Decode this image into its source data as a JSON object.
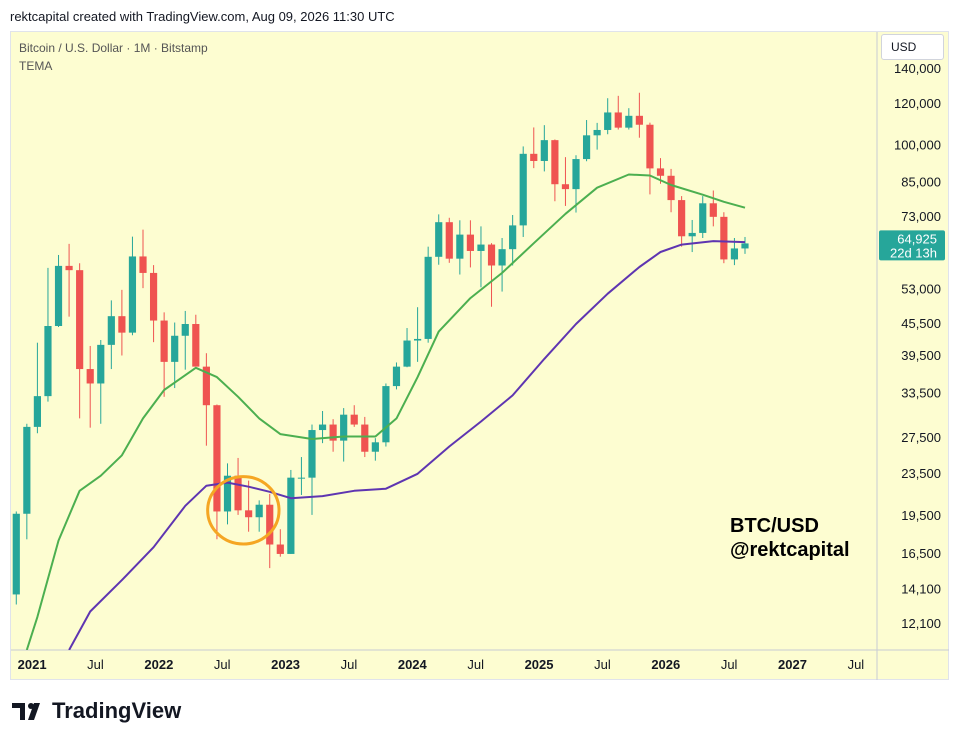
{
  "header": {
    "credit": "rektcapital created with TradingView.com, Aug 09, 2026 11:30 UTC"
  },
  "legend": {
    "symbol": "Bitcoin / U.S. Dollar · 1M · Bitstamp",
    "indicator": "TEMA"
  },
  "currency_button": "USD",
  "watermark": {
    "line1": "BTC/USD",
    "line2": "@rektcapital"
  },
  "footer": {
    "brand": "TradingView"
  },
  "colors": {
    "background": "#fdfdd1",
    "up": "#26a69a",
    "down": "#ef5350",
    "tema_fast": "#4caf50",
    "tema_slow": "#5e35b1",
    "highlight": "#f5a623"
  },
  "chart_data": {
    "type": "candlestick",
    "symbol": "Bitcoin / U.S. Dollar",
    "interval": "1M",
    "exchange": "Bitstamp",
    "y_scale": "log",
    "ylim": [
      10800,
      165000
    ],
    "xlim": [
      "2020-11-01",
      "2027-09-01"
    ],
    "y_ticks": [
      140000,
      120000,
      100000,
      85000,
      73000,
      53000,
      45500,
      39500,
      33500,
      27500,
      23500,
      19500,
      16500,
      14100,
      12100
    ],
    "x_ticks": [
      {
        "label": "2021",
        "date": "2021-01-01",
        "bold": true
      },
      {
        "label": "Jul",
        "date": "2021-07-01",
        "bold": false
      },
      {
        "label": "2022",
        "date": "2022-01-01",
        "bold": true
      },
      {
        "label": "Jul",
        "date": "2022-07-01",
        "bold": false
      },
      {
        "label": "2023",
        "date": "2023-01-01",
        "bold": true
      },
      {
        "label": "Jul",
        "date": "2023-07-01",
        "bold": false
      },
      {
        "label": "2024",
        "date": "2024-01-01",
        "bold": true
      },
      {
        "label": "Jul",
        "date": "2024-07-01",
        "bold": false
      },
      {
        "label": "2025",
        "date": "2025-01-01",
        "bold": true
      },
      {
        "label": "Jul",
        "date": "2025-07-01",
        "bold": false
      },
      {
        "label": "2026",
        "date": "2026-01-01",
        "bold": true
      },
      {
        "label": "Jul",
        "date": "2026-07-01",
        "bold": false
      },
      {
        "label": "2027",
        "date": "2027-01-01",
        "bold": true
      },
      {
        "label": "Jul",
        "date": "2027-07-01",
        "bold": false
      }
    ],
    "last_price": {
      "value": 64925,
      "label": "64,925",
      "countdown": "22d 13h"
    },
    "candles": [
      {
        "d": "2020-11",
        "o": 13800,
        "h": 19900,
        "l": 13200,
        "c": 19700
      },
      {
        "d": "2020-12",
        "o": 19700,
        "h": 29300,
        "l": 17600,
        "c": 28900
      },
      {
        "d": "2021-01",
        "o": 28900,
        "h": 41900,
        "l": 28100,
        "c": 33100
      },
      {
        "d": "2021-02",
        "o": 33100,
        "h": 58300,
        "l": 32300,
        "c": 45100
      },
      {
        "d": "2021-03",
        "o": 45100,
        "h": 61700,
        "l": 44900,
        "c": 58800
      },
      {
        "d": "2021-04",
        "o": 58800,
        "h": 64800,
        "l": 47000,
        "c": 57700
      },
      {
        "d": "2021-05",
        "o": 57700,
        "h": 59500,
        "l": 30000,
        "c": 37300
      },
      {
        "d": "2021-06",
        "o": 37300,
        "h": 41300,
        "l": 28800,
        "c": 35000
      },
      {
        "d": "2021-07",
        "o": 35000,
        "h": 42400,
        "l": 29300,
        "c": 41500
      },
      {
        "d": "2021-08",
        "o": 41500,
        "h": 50500,
        "l": 37300,
        "c": 47100
      },
      {
        "d": "2021-09",
        "o": 47100,
        "h": 52900,
        "l": 39600,
        "c": 43800
      },
      {
        "d": "2021-10",
        "o": 43800,
        "h": 66900,
        "l": 43300,
        "c": 61300
      },
      {
        "d": "2021-11",
        "o": 61300,
        "h": 69000,
        "l": 53300,
        "c": 57000
      },
      {
        "d": "2021-12",
        "o": 57000,
        "h": 59000,
        "l": 42000,
        "c": 46200
      },
      {
        "d": "2022-01",
        "o": 46200,
        "h": 47900,
        "l": 33000,
        "c": 38500
      },
      {
        "d": "2022-02",
        "o": 38500,
        "h": 45800,
        "l": 34300,
        "c": 43200
      },
      {
        "d": "2022-03",
        "o": 43200,
        "h": 48200,
        "l": 37200,
        "c": 45500
      },
      {
        "d": "2022-04",
        "o": 45500,
        "h": 47400,
        "l": 37700,
        "c": 37700
      },
      {
        "d": "2022-05",
        "o": 37700,
        "h": 40000,
        "l": 26600,
        "c": 31800
      },
      {
        "d": "2022-06",
        "o": 31800,
        "h": 31900,
        "l": 17600,
        "c": 19900
      },
      {
        "d": "2022-07",
        "o": 19900,
        "h": 24600,
        "l": 18800,
        "c": 23300
      },
      {
        "d": "2022-08",
        "o": 23300,
        "h": 25200,
        "l": 19600,
        "c": 20000
      },
      {
        "d": "2022-09",
        "o": 20000,
        "h": 22800,
        "l": 18200,
        "c": 19400
      },
      {
        "d": "2022-10",
        "o": 19400,
        "h": 20900,
        "l": 18200,
        "c": 20500
      },
      {
        "d": "2022-11",
        "o": 20500,
        "h": 21500,
        "l": 15500,
        "c": 17200
      },
      {
        "d": "2022-12",
        "o": 17200,
        "h": 18400,
        "l": 16300,
        "c": 16500
      },
      {
        "d": "2023-01",
        "o": 16500,
        "h": 23900,
        "l": 16500,
        "c": 23100
      },
      {
        "d": "2023-02",
        "o": 23100,
        "h": 25300,
        "l": 21400,
        "c": 23100
      },
      {
        "d": "2023-03",
        "o": 23100,
        "h": 29200,
        "l": 19600,
        "c": 28500
      },
      {
        "d": "2023-04",
        "o": 28500,
        "h": 31000,
        "l": 26900,
        "c": 29200
      },
      {
        "d": "2023-05",
        "o": 29200,
        "h": 29900,
        "l": 25900,
        "c": 27200
      },
      {
        "d": "2023-06",
        "o": 27200,
        "h": 31400,
        "l": 24800,
        "c": 30500
      },
      {
        "d": "2023-07",
        "o": 30500,
        "h": 31800,
        "l": 28900,
        "c": 29200
      },
      {
        "d": "2023-08",
        "o": 29200,
        "h": 30200,
        "l": 25300,
        "c": 25900
      },
      {
        "d": "2023-09",
        "o": 25900,
        "h": 27500,
        "l": 24900,
        "c": 27000
      },
      {
        "d": "2023-10",
        "o": 27000,
        "h": 35000,
        "l": 26500,
        "c": 34600
      },
      {
        "d": "2023-11",
        "o": 34600,
        "h": 38400,
        "l": 34100,
        "c": 37700
      },
      {
        "d": "2023-12",
        "o": 37700,
        "h": 44700,
        "l": 37600,
        "c": 42300
      },
      {
        "d": "2024-01",
        "o": 42300,
        "h": 49000,
        "l": 38500,
        "c": 42600
      },
      {
        "d": "2024-02",
        "o": 42600,
        "h": 64000,
        "l": 41900,
        "c": 61200
      },
      {
        "d": "2024-03",
        "o": 61200,
        "h": 73800,
        "l": 59100,
        "c": 71300
      },
      {
        "d": "2024-04",
        "o": 71300,
        "h": 72700,
        "l": 59600,
        "c": 60700
      },
      {
        "d": "2024-05",
        "o": 60700,
        "h": 71900,
        "l": 56600,
        "c": 67500
      },
      {
        "d": "2024-06",
        "o": 67500,
        "h": 71900,
        "l": 58400,
        "c": 62800
      },
      {
        "d": "2024-07",
        "o": 62800,
        "h": 70000,
        "l": 53500,
        "c": 64600
      },
      {
        "d": "2024-08",
        "o": 64600,
        "h": 65000,
        "l": 49100,
        "c": 58900
      },
      {
        "d": "2024-09",
        "o": 58900,
        "h": 66500,
        "l": 52500,
        "c": 63300
      },
      {
        "d": "2024-10",
        "o": 63300,
        "h": 73600,
        "l": 58900,
        "c": 70300
      },
      {
        "d": "2024-11",
        "o": 70300,
        "h": 99600,
        "l": 66800,
        "c": 96400
      },
      {
        "d": "2024-12",
        "o": 96400,
        "h": 108300,
        "l": 90500,
        "c": 93400
      },
      {
        "d": "2025-01",
        "o": 93400,
        "h": 109400,
        "l": 89200,
        "c": 102400
      },
      {
        "d": "2025-02",
        "o": 102400,
        "h": 102700,
        "l": 78200,
        "c": 84300
      },
      {
        "d": "2025-03",
        "o": 84300,
        "h": 95000,
        "l": 76600,
        "c": 82500
      },
      {
        "d": "2025-04",
        "o": 82500,
        "h": 95800,
        "l": 74400,
        "c": 94200
      },
      {
        "d": "2025-05",
        "o": 94200,
        "h": 111900,
        "l": 93300,
        "c": 104600
      },
      {
        "d": "2025-06",
        "o": 104600,
        "h": 110500,
        "l": 98200,
        "c": 107100
      },
      {
        "d": "2025-07",
        "o": 107100,
        "h": 123200,
        "l": 105100,
        "c": 115700
      },
      {
        "d": "2025-08",
        "o": 115700,
        "h": 124500,
        "l": 107300,
        "c": 108200
      },
      {
        "d": "2025-09",
        "o": 108200,
        "h": 117900,
        "l": 107300,
        "c": 114000
      },
      {
        "d": "2025-10",
        "o": 114000,
        "h": 126200,
        "l": 103500,
        "c": 109600
      },
      {
        "d": "2025-11",
        "o": 109600,
        "h": 110600,
        "l": 80600,
        "c": 90400
      },
      {
        "d": "2025-12",
        "o": 90400,
        "h": 94600,
        "l": 84500,
        "c": 87500
      },
      {
        "d": "2026-01",
        "o": 87500,
        "h": 90200,
        "l": 74500,
        "c": 78600
      },
      {
        "d": "2026-02",
        "o": 78600,
        "h": 80000,
        "l": 64000,
        "c": 67000
      },
      {
        "d": "2026-03",
        "o": 67000,
        "h": 72000,
        "l": 62500,
        "c": 68000
      },
      {
        "d": "2026-04",
        "o": 68000,
        "h": 80000,
        "l": 66500,
        "c": 77500
      },
      {
        "d": "2026-05",
        "o": 77500,
        "h": 82000,
        "l": 70000,
        "c": 73000
      },
      {
        "d": "2026-06",
        "o": 73000,
        "h": 74500,
        "l": 59500,
        "c": 60500
      },
      {
        "d": "2026-07",
        "o": 60500,
        "h": 66500,
        "l": 59000,
        "c": 63500
      },
      {
        "d": "2026-08",
        "o": 63500,
        "h": 66800,
        "l": 62000,
        "c": 64925
      }
    ],
    "series": [
      {
        "name": "TEMA",
        "color": "#4caf50",
        "points": [
          [
            "2020-12",
            10800
          ],
          [
            "2021-01",
            12500
          ],
          [
            "2021-03",
            17500
          ],
          [
            "2021-05",
            21800
          ],
          [
            "2021-07",
            23300
          ],
          [
            "2021-09",
            25500
          ],
          [
            "2021-11",
            30000
          ],
          [
            "2022-01",
            34000
          ],
          [
            "2022-04",
            37500
          ],
          [
            "2022-06",
            36000
          ],
          [
            "2022-08",
            33000
          ],
          [
            "2022-10",
            30000
          ],
          [
            "2022-12",
            28000
          ],
          [
            "2023-03",
            27400
          ],
          [
            "2023-06",
            27700
          ],
          [
            "2023-09",
            27700
          ],
          [
            "2023-11",
            30000
          ],
          [
            "2024-01",
            36000
          ],
          [
            "2024-03",
            44000
          ],
          [
            "2024-06",
            51000
          ],
          [
            "2024-09",
            57000
          ],
          [
            "2024-12",
            65000
          ],
          [
            "2025-03",
            74000
          ],
          [
            "2025-06",
            83000
          ],
          [
            "2025-09",
            88000
          ],
          [
            "2025-11",
            87600
          ],
          [
            "2026-01",
            84000
          ],
          [
            "2026-04",
            80500
          ],
          [
            "2026-06",
            78000
          ],
          [
            "2026-08",
            76000
          ]
        ]
      },
      {
        "name": "TEMA",
        "color": "#5e35b1",
        "points": [
          [
            "2021-04",
            10800
          ],
          [
            "2021-06",
            12800
          ],
          [
            "2021-09",
            14700
          ],
          [
            "2021-12",
            17000
          ],
          [
            "2022-03",
            20400
          ],
          [
            "2022-05",
            22300
          ],
          [
            "2022-07",
            22600
          ],
          [
            "2022-09",
            22200
          ],
          [
            "2022-11",
            21700
          ],
          [
            "2023-01",
            21100
          ],
          [
            "2023-04",
            21300
          ],
          [
            "2023-07",
            21800
          ],
          [
            "2023-10",
            22000
          ],
          [
            "2024-01",
            23500
          ],
          [
            "2024-04",
            26500
          ],
          [
            "2024-07",
            29600
          ],
          [
            "2024-10",
            33200
          ],
          [
            "2025-01",
            39000
          ],
          [
            "2025-04",
            45500
          ],
          [
            "2025-07",
            52000
          ],
          [
            "2025-10",
            58500
          ],
          [
            "2025-12",
            62500
          ],
          [
            "2026-02",
            64600
          ],
          [
            "2026-05",
            65600
          ],
          [
            "2026-08",
            65300
          ]
        ]
      }
    ],
    "annotations": [
      {
        "type": "circle",
        "start": "2022-06",
        "end": "2022-11",
        "center_price": 20000
      }
    ]
  }
}
